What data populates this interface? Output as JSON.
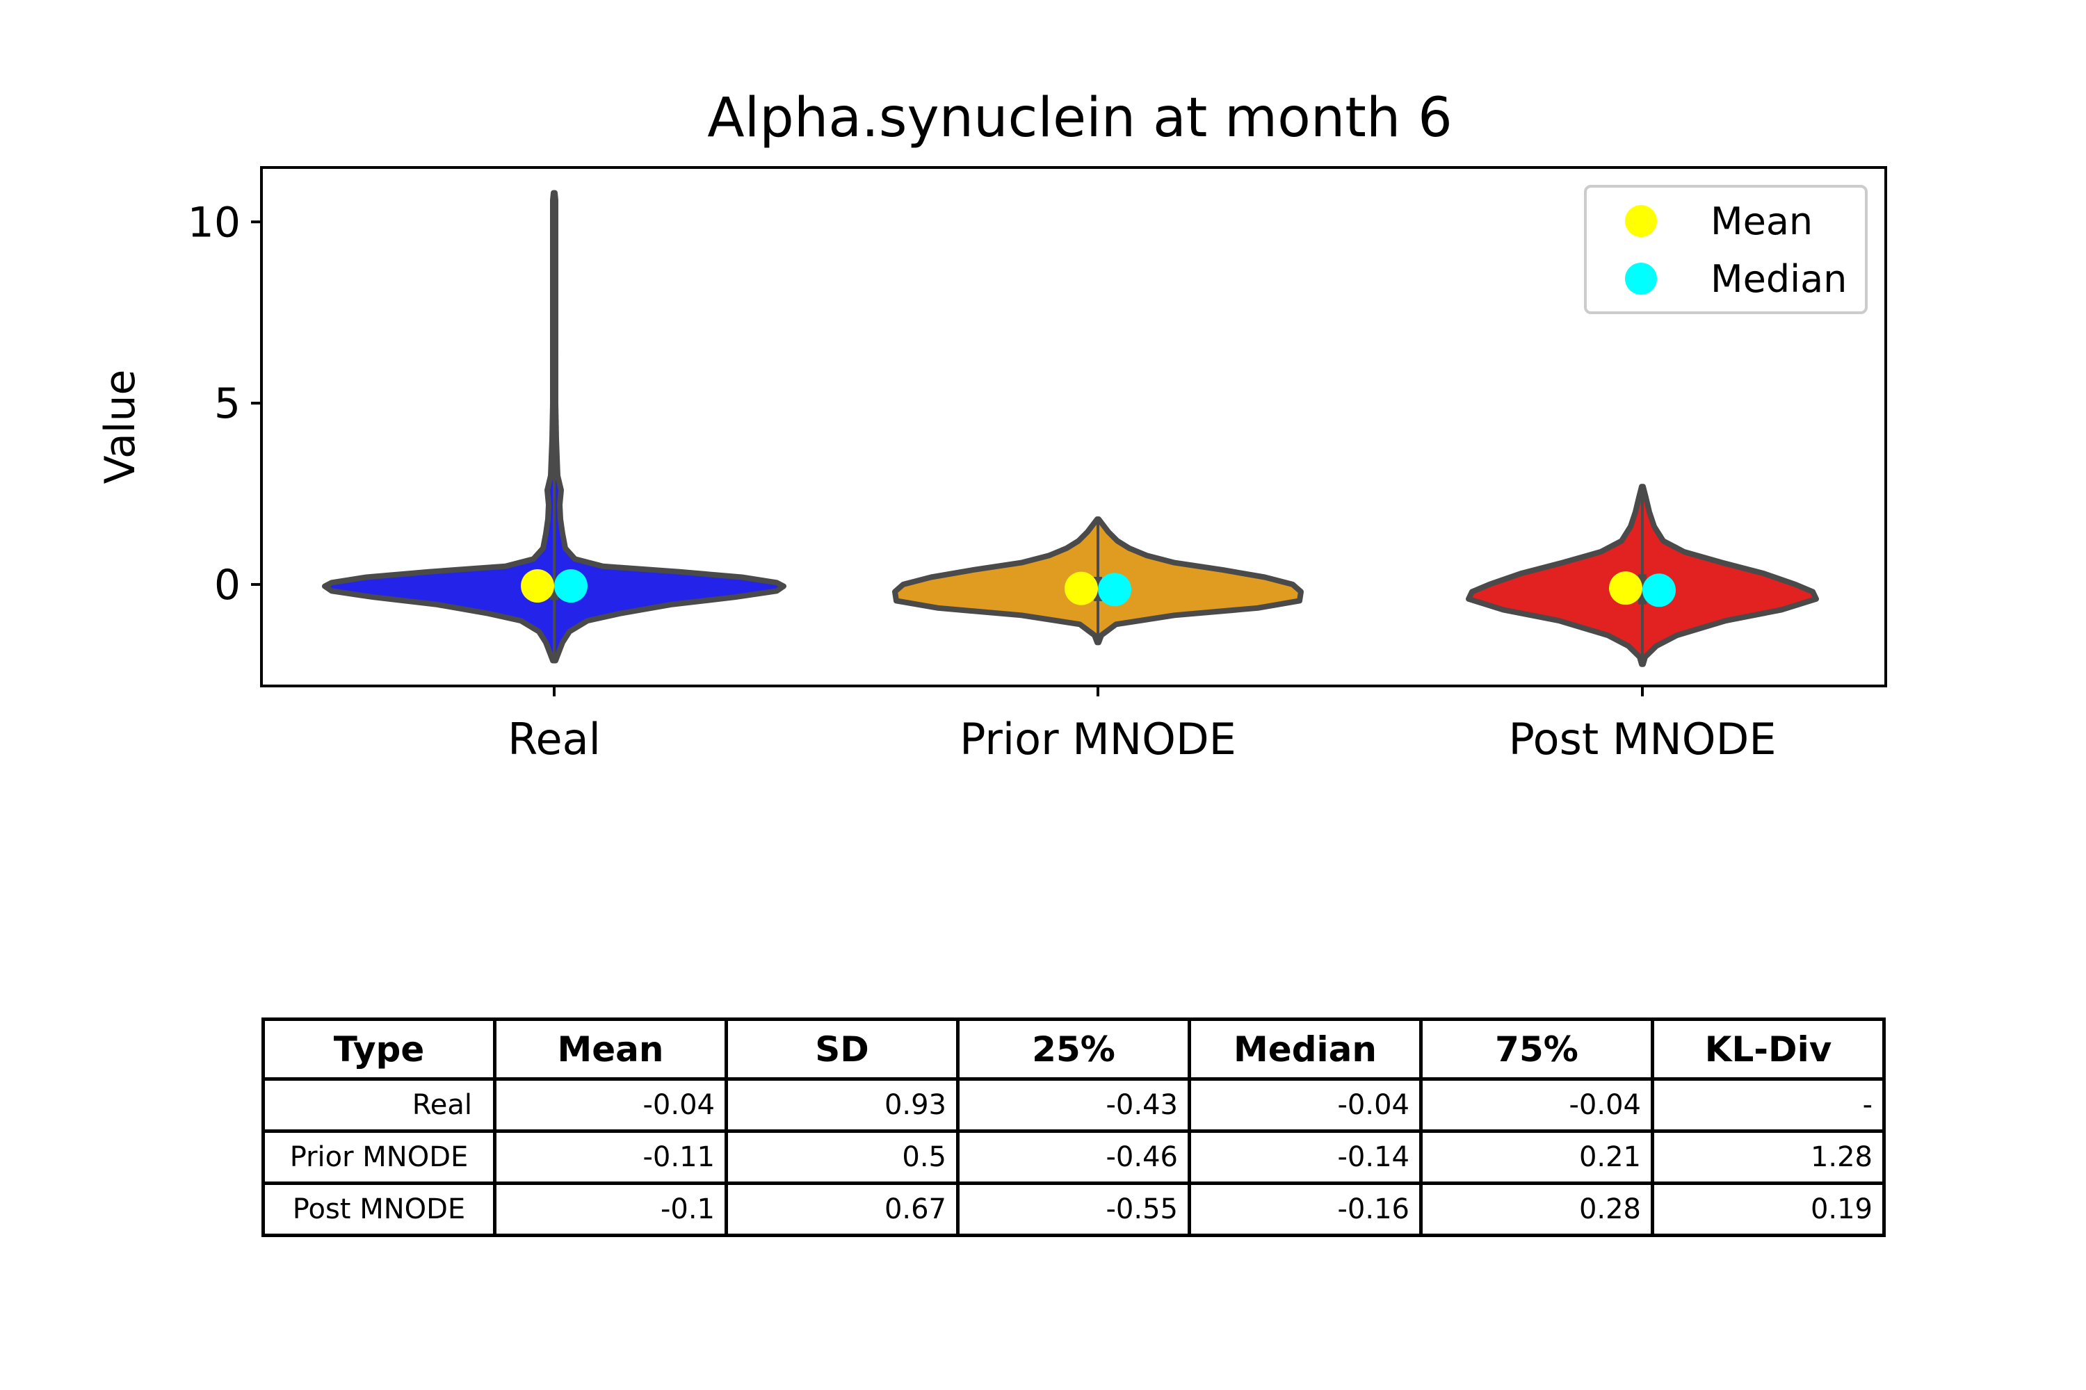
{
  "chart_data": {
    "type": "violin",
    "title": "Alpha.synuclein at month 6",
    "xlabel": "",
    "ylabel": "Value",
    "ylim": [
      -2.8,
      11.5
    ],
    "yticks": [
      0,
      5,
      10
    ],
    "categories": [
      "Real",
      "Prior MNODE",
      "Post MNODE"
    ],
    "colors": [
      "#2323ea",
      "#e09b21",
      "#e22121"
    ],
    "outline_color": "#4a4a4a",
    "legend": {
      "placement": "top-right",
      "entries": [
        {
          "label": "Mean",
          "color": "#ffff00"
        },
        {
          "label": "Median",
          "color": "#00ffff"
        }
      ]
    },
    "series": [
      {
        "category": "Real",
        "mean": -0.04,
        "median": -0.04,
        "min": -2.1,
        "max": 10.8,
        "q1": -0.43,
        "q3": -0.04
      },
      {
        "category": "Prior MNODE",
        "mean": -0.11,
        "median": -0.14,
        "min": -1.6,
        "max": 1.8,
        "q1": -0.46,
        "q3": 0.21
      },
      {
        "category": "Post MNODE",
        "mean": -0.1,
        "median": -0.16,
        "min": -2.2,
        "max": 2.7,
        "q1": -0.55,
        "q3": 0.28
      }
    ],
    "table": {
      "columns": [
        "Type",
        "Mean",
        "SD",
        "25%",
        "Median",
        "75%",
        "KL-Div"
      ],
      "rows": [
        [
          "Real",
          "-0.04",
          "0.93",
          "-0.43",
          "-0.04",
          "-0.04",
          "-"
        ],
        [
          "Prior MNODE",
          "-0.11",
          "0.5",
          "-0.46",
          "-0.14",
          "0.21",
          "1.28"
        ],
        [
          "Post MNODE",
          "-0.1",
          "0.67",
          "-0.55",
          "-0.16",
          "0.28",
          "0.19"
        ]
      ]
    }
  }
}
